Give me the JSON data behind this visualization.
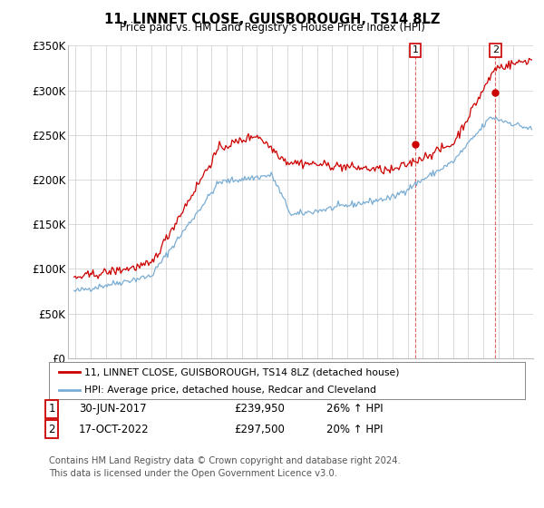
{
  "title": "11, LINNET CLOSE, GUISBOROUGH, TS14 8LZ",
  "subtitle": "Price paid vs. HM Land Registry's House Price Index (HPI)",
  "legend_line1": "11, LINNET CLOSE, GUISBOROUGH, TS14 8LZ (detached house)",
  "legend_line2": "HPI: Average price, detached house, Redcar and Cleveland",
  "point1_date": "30-JUN-2017",
  "point1_value": "£239,950",
  "point1_pct": "26% ↑ HPI",
  "point2_date": "17-OCT-2022",
  "point2_value": "£297,500",
  "point2_pct": "20% ↑ HPI",
  "footnote1": "Contains HM Land Registry data © Crown copyright and database right 2024.",
  "footnote2": "This data is licensed under the Open Government Licence v3.0.",
  "red_color": "#cc0000",
  "blue_color": "#7aadd4",
  "background_color": "#ffffff",
  "grid_color": "#cccccc",
  "ylim": [
    0,
    350000
  ],
  "yticks": [
    0,
    50000,
    100000,
    150000,
    200000,
    250000,
    300000,
    350000
  ],
  "ytick_labels": [
    "£0",
    "£50K",
    "£100K",
    "£150K",
    "£200K",
    "£250K",
    "£300K",
    "£350K"
  ],
  "point1_x": 2017.5,
  "point1_y": 239950,
  "point2_x": 2022.79,
  "point2_y": 297500,
  "xmin": 1994.5,
  "xmax": 2025.3
}
